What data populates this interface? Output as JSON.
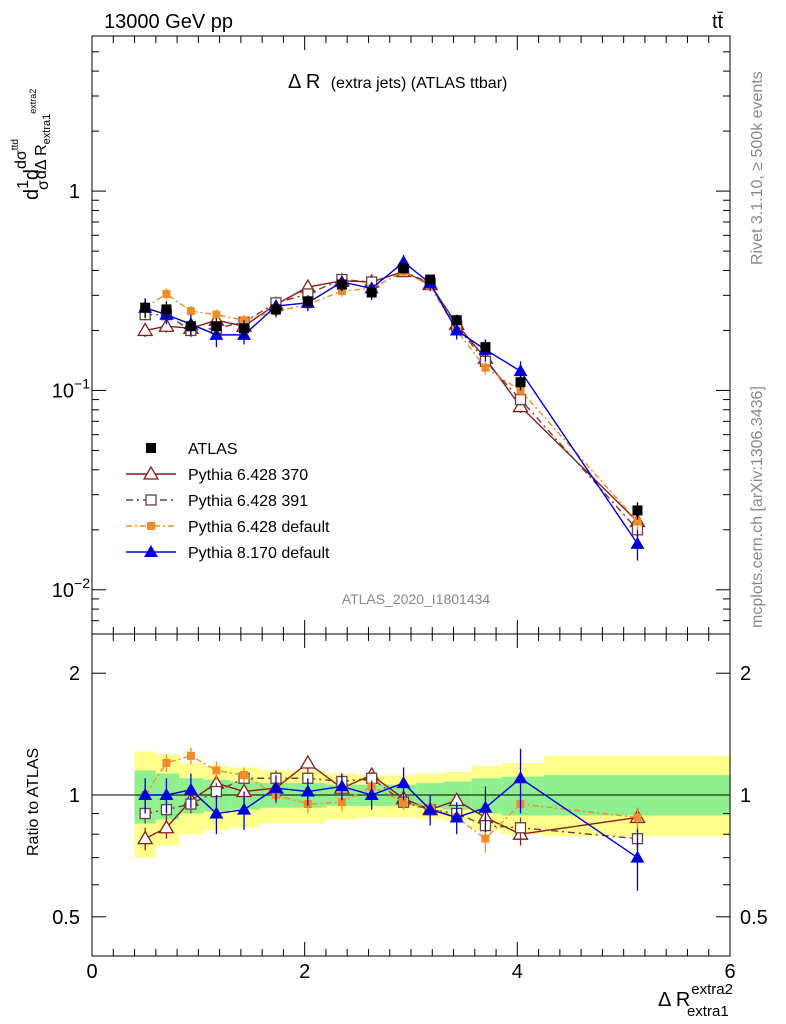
{
  "header": {
    "energy": "13000 GeV pp",
    "process": "tt̄"
  },
  "plot_title": {
    "main": "Δ R",
    "sub": "(extra jets) (ATLAS ttbar)"
  },
  "side_text": {
    "rivet": "Rivet 3.1.10, ≥ 500k events",
    "mcplots": "mcplots.cern.ch [arXiv:1306.3436]"
  },
  "analysis_id": "ATLAS_2020_I1801434",
  "y_axis_main": {
    "pre": "d",
    "frac1": "1",
    "sigma": "σ",
    "d1": "d",
    "dsig": "dσ",
    "sup": "ttd",
    "den": "dΔ R",
    "sub": "extra1",
    "sup2": "extra2"
  },
  "y_axis_ratio": "Ratio to ATLAS",
  "x_axis": {
    "label": "Δ R",
    "sup": "extra2",
    "sub": "extra1"
  },
  "colors": {
    "atlas": "#000000",
    "p370": "#8b1a1a",
    "p391": "#6b4040",
    "pdef": "#f28c28",
    "p8": "#0000dd",
    "green": "#90f090",
    "yellow": "#ffff8c"
  },
  "chart_data": {
    "type": "scatter",
    "x_range": [
      0,
      6
    ],
    "y_range_main": [
      0.006,
      6
    ],
    "y_scale_main": "log",
    "y_range_ratio": [
      0.4,
      2.5
    ],
    "y_scale_ratio": "log",
    "x_ticks": [
      "0",
      "2",
      "4",
      "6"
    ],
    "y_ticks_main": [
      {
        "value": 1,
        "label": "1"
      },
      {
        "value": 0.1,
        "label": "10",
        "exp": "−1"
      },
      {
        "value": 0.01,
        "label": "10",
        "exp": "−2"
      }
    ],
    "y_ticks_ratio": [
      {
        "value": 2,
        "label": "2"
      },
      {
        "value": 1,
        "label": "1"
      },
      {
        "value": 0.5,
        "label": "0.5"
      }
    ],
    "x": [
      0.5,
      0.7,
      0.93,
      1.17,
      1.43,
      1.73,
      2.03,
      2.35,
      2.63,
      2.93,
      3.18,
      3.43,
      3.7,
      4.03,
      5.13
    ],
    "bands": [
      {
        "x1": 0.4,
        "x2": 0.6,
        "green": [
          0.85,
          1.15
        ],
        "yellow": [
          0.7,
          1.28
        ]
      },
      {
        "x1": 0.6,
        "x2": 0.82,
        "green": [
          0.87,
          1.13
        ],
        "yellow": [
          0.75,
          1.26
        ]
      },
      {
        "x1": 0.82,
        "x2": 1.05,
        "green": [
          0.9,
          1.1
        ],
        "yellow": [
          0.8,
          1.2
        ]
      },
      {
        "x1": 1.05,
        "x2": 1.3,
        "green": [
          0.91,
          1.09
        ],
        "yellow": [
          0.82,
          1.18
        ]
      },
      {
        "x1": 1.3,
        "x2": 1.58,
        "green": [
          0.92,
          1.08
        ],
        "yellow": [
          0.83,
          1.17
        ]
      },
      {
        "x1": 1.58,
        "x2": 1.88,
        "green": [
          0.93,
          1.07
        ],
        "yellow": [
          0.85,
          1.15
        ]
      },
      {
        "x1": 1.88,
        "x2": 2.2,
        "green": [
          0.93,
          1.07
        ],
        "yellow": [
          0.85,
          1.15
        ]
      },
      {
        "x1": 2.2,
        "x2": 2.5,
        "green": [
          0.94,
          1.06
        ],
        "yellow": [
          0.87,
          1.13
        ]
      },
      {
        "x1": 2.5,
        "x2": 2.78,
        "green": [
          0.94,
          1.06
        ],
        "yellow": [
          0.88,
          1.12
        ]
      },
      {
        "x1": 2.78,
        "x2": 3.05,
        "green": [
          0.94,
          1.06
        ],
        "yellow": [
          0.88,
          1.12
        ]
      },
      {
        "x1": 3.05,
        "x2": 3.3,
        "green": [
          0.93,
          1.07
        ],
        "yellow": [
          0.87,
          1.13
        ]
      },
      {
        "x1": 3.3,
        "x2": 3.57,
        "green": [
          0.92,
          1.08
        ],
        "yellow": [
          0.86,
          1.14
        ]
      },
      {
        "x1": 3.57,
        "x2": 3.85,
        "green": [
          0.9,
          1.1
        ],
        "yellow": [
          0.82,
          1.18
        ]
      },
      {
        "x1": 3.85,
        "x2": 4.25,
        "green": [
          0.89,
          1.11
        ],
        "yellow": [
          0.8,
          1.2
        ]
      },
      {
        "x1": 4.25,
        "x2": 6.0,
        "green": [
          0.89,
          1.12
        ],
        "yellow": [
          0.79,
          1.25
        ]
      }
    ],
    "series": [
      {
        "name": "ATLAS",
        "key": "atlas",
        "marker": "square",
        "values": [
          0.26,
          0.255,
          0.21,
          0.21,
          0.205,
          0.255,
          0.28,
          0.34,
          0.31,
          0.41,
          0.36,
          0.225,
          0.165,
          0.11,
          0.025
        ],
        "errors": [
          0.03,
          0.025,
          0.02,
          0.02,
          0.02,
          0.02,
          0.02,
          0.025,
          0.025,
          0.025,
          0.02,
          0.015,
          0.015,
          0.01,
          0.0025
        ],
        "ratio": [
          1,
          1,
          1,
          1,
          1,
          1,
          1,
          1,
          1,
          1,
          1,
          1,
          1,
          1,
          1
        ],
        "ratio_err": [
          0,
          0,
          0,
          0,
          0,
          0,
          0,
          0,
          0,
          0,
          0,
          0,
          0,
          0,
          0
        ]
      },
      {
        "name": "Pythia 6.428 370",
        "key": "p370",
        "marker": "triangle-open",
        "dash": "",
        "values": [
          0.2,
          0.21,
          0.205,
          0.225,
          0.21,
          0.27,
          0.33,
          0.355,
          0.35,
          0.395,
          0.34,
          0.215,
          0.145,
          0.083,
          0.022
        ],
        "errors": [
          0.015,
          0.015,
          0.015,
          0.015,
          0.015,
          0.02,
          0.02,
          0.02,
          0.02,
          0.02,
          0.02,
          0.012,
          0.01,
          0.006,
          0.002
        ],
        "ratio": [
          0.78,
          0.83,
          0.97,
          1.07,
          1.02,
          1.04,
          1.2,
          1.04,
          1.12,
          0.98,
          0.92,
          0.97,
          0.88,
          0.8,
          0.88
        ],
        "ratio_err": [
          0.05,
          0.05,
          0.05,
          0.05,
          0.05,
          0.05,
          0.05,
          0.05,
          0.04,
          0.04,
          0.04,
          0.04,
          0.05,
          0.05,
          0.05
        ]
      },
      {
        "name": "Pythia 6.428 391",
        "key": "p391",
        "marker": "square-open",
        "dash": "7,4,2,4",
        "values": [
          0.24,
          0.24,
          0.2,
          0.205,
          0.22,
          0.275,
          0.305,
          0.36,
          0.35,
          0.395,
          0.345,
          0.21,
          0.14,
          0.09,
          0.02
        ],
        "errors": [
          0.015,
          0.015,
          0.015,
          0.015,
          0.015,
          0.02,
          0.02,
          0.02,
          0.02,
          0.02,
          0.02,
          0.012,
          0.01,
          0.006,
          0.002
        ],
        "ratio": [
          0.9,
          0.92,
          0.95,
          1.02,
          1.1,
          1.1,
          1.1,
          1.08,
          1.1,
          0.96,
          0.92,
          0.9,
          0.84,
          0.83,
          0.78
        ],
        "ratio_err": [
          0.05,
          0.05,
          0.05,
          0.05,
          0.05,
          0.05,
          0.05,
          0.05,
          0.04,
          0.04,
          0.04,
          0.04,
          0.05,
          0.05,
          0.05
        ]
      },
      {
        "name": "Pythia 6.428 default",
        "key": "pdef",
        "marker": "square-filled-small",
        "dash": "6,3,2,3",
        "values": [
          0.26,
          0.305,
          0.25,
          0.24,
          0.225,
          0.25,
          0.27,
          0.315,
          0.325,
          0.395,
          0.335,
          0.2,
          0.13,
          0.1,
          0.022
        ],
        "errors": [
          0.02,
          0.02,
          0.015,
          0.015,
          0.015,
          0.02,
          0.02,
          0.02,
          0.02,
          0.02,
          0.02,
          0.012,
          0.01,
          0.006,
          0.002
        ],
        "ratio": [
          1.0,
          1.2,
          1.25,
          1.15,
          1.12,
          1.0,
          0.95,
          0.96,
          1.05,
          0.96,
          0.93,
          0.88,
          0.78,
          0.95,
          0.88
        ],
        "ratio_err": [
          0.06,
          0.06,
          0.06,
          0.06,
          0.05,
          0.05,
          0.05,
          0.05,
          0.04,
          0.04,
          0.04,
          0.04,
          0.06,
          0.05,
          0.05
        ]
      },
      {
        "name": "Pythia 8.170 default",
        "key": "p8",
        "marker": "triangle-filled",
        "dash": "",
        "values": [
          0.26,
          0.24,
          0.215,
          0.19,
          0.19,
          0.265,
          0.275,
          0.35,
          0.325,
          0.44,
          0.345,
          0.2,
          0.16,
          0.125,
          0.017
        ],
        "errors": [
          0.025,
          0.025,
          0.025,
          0.025,
          0.02,
          0.02,
          0.025,
          0.025,
          0.025,
          0.04,
          0.03,
          0.02,
          0.02,
          0.015,
          0.003
        ],
        "ratio": [
          1.0,
          1.0,
          1.03,
          0.9,
          0.92,
          1.04,
          1.02,
          1.05,
          1.0,
          1.07,
          0.92,
          0.88,
          0.93,
          1.1,
          0.7
        ],
        "ratio_err": [
          0.1,
          0.1,
          0.1,
          0.1,
          0.1,
          0.08,
          0.08,
          0.08,
          0.08,
          0.1,
          0.08,
          0.08,
          0.12,
          0.2,
          0.12
        ]
      }
    ]
  }
}
